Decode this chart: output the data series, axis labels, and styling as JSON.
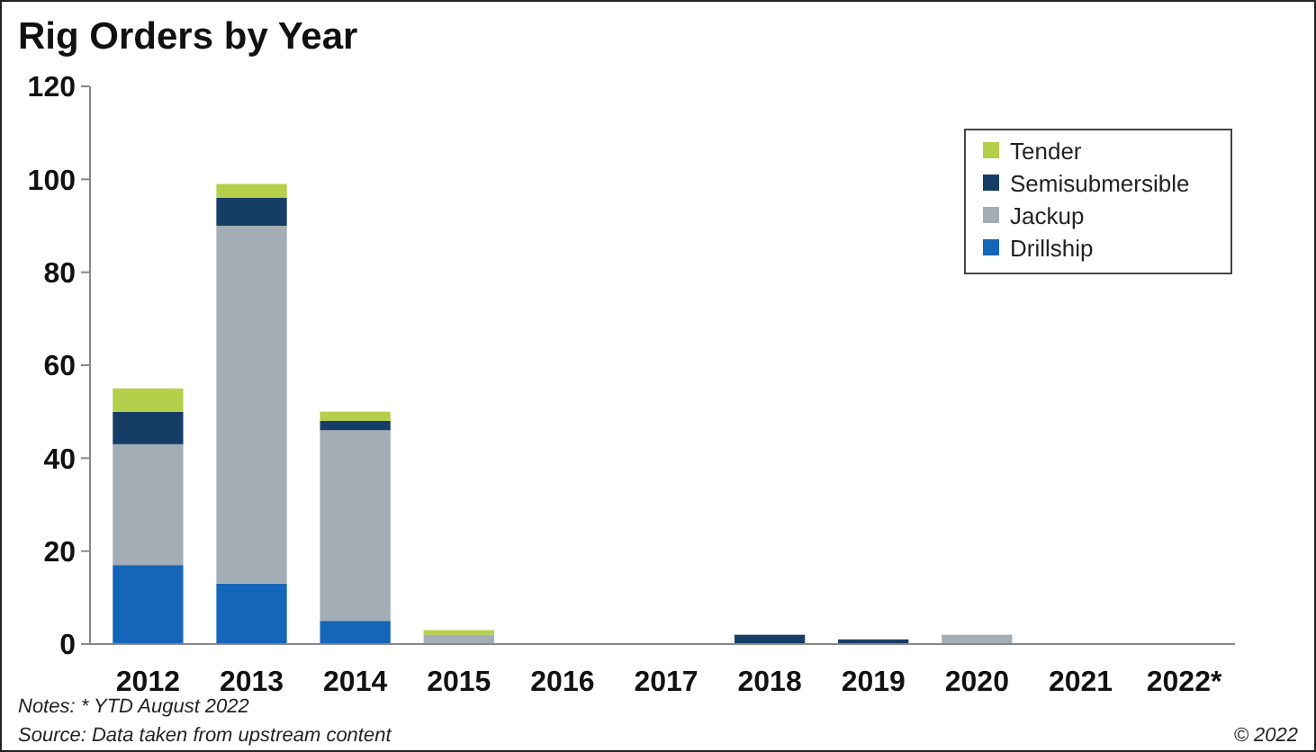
{
  "chart_data": {
    "type": "bar",
    "title": "Rig Orders by Year",
    "stacked": true,
    "categories": [
      "2012",
      "2013",
      "2014",
      "2015",
      "2016",
      "2017",
      "2018",
      "2019",
      "2020",
      "2021",
      "2022*"
    ],
    "series": [
      {
        "name": "Drillship",
        "color": "#1565b8",
        "values": [
          17,
          13,
          5,
          0,
          0,
          0,
          0,
          0,
          0,
          0,
          0
        ]
      },
      {
        "name": "Jackup",
        "color": "#a3adb5",
        "values": [
          26,
          77,
          41,
          2,
          0,
          0,
          0,
          0,
          2,
          0,
          0
        ]
      },
      {
        "name": "Semisubmersible",
        "color": "#163d66",
        "values": [
          7,
          6,
          2,
          0,
          0,
          0,
          2,
          1,
          0,
          0,
          0
        ]
      },
      {
        "name": "Tender",
        "color": "#b5cf4a",
        "values": [
          5,
          3,
          2,
          1,
          0,
          0,
          0,
          0,
          0,
          0,
          0
        ]
      }
    ],
    "ylim": [
      0,
      120
    ],
    "yticks": [
      0,
      20,
      40,
      60,
      80,
      100,
      120
    ],
    "grid": false,
    "legend": "top right",
    "annotations": [
      "Notes: * YTD August 2022",
      "Source: Data taken from upstream content",
      "© 2022"
    ]
  }
}
